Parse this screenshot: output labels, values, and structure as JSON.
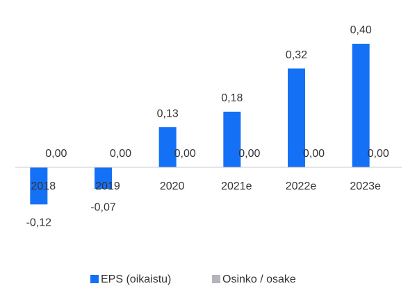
{
  "chart_data": {
    "type": "bar",
    "categories": [
      "2018",
      "2019",
      "2020",
      "2021e",
      "2022e",
      "2023e"
    ],
    "series": [
      {
        "name": "EPS (oikaistu)",
        "color": "#1471f5",
        "values": [
          -0.12,
          -0.07,
          0.13,
          0.18,
          0.32,
          0.4
        ],
        "value_labels": [
          "-0,12",
          "-0,07",
          "0,13",
          "0,18",
          "0,32",
          "0,40"
        ]
      },
      {
        "name": "Osinko / osake",
        "color": "#b3b5bb",
        "values": [
          0,
          0,
          0,
          0,
          0,
          0
        ],
        "value_labels": [
          "0,00",
          "0,00",
          "0,00",
          "0,00",
          "0,00",
          "0,00"
        ]
      }
    ],
    "legend": "bottom"
  }
}
